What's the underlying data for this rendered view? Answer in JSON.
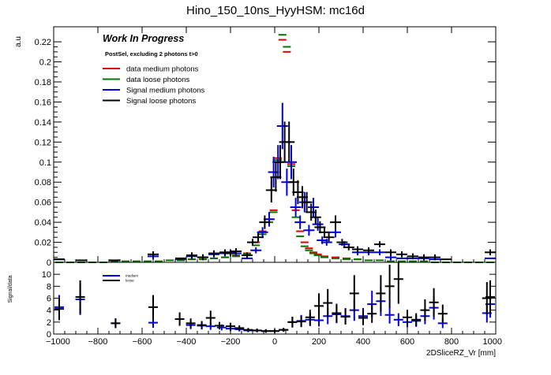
{
  "chart_data": [
    {
      "type": "scatter",
      "title": "Hino_150_10ns_HyyHSM: mc16d",
      "ylabel": "a.u",
      "xlim": [
        -1000,
        1000
      ],
      "ylim": [
        0,
        0.235
      ],
      "yticks": [
        0,
        0.02,
        0.04,
        0.06,
        0.08,
        0.1,
        0.12,
        0.14,
        0.16,
        0.18,
        0.2,
        0.22
      ],
      "ytick_labels": [
        "0",
        "0.02",
        "0.04",
        "0.06",
        "0.08",
        "0.1",
        "0.12",
        "0.14",
        "0.16",
        "0.18",
        "0.2",
        "0.22"
      ],
      "annotations": {
        "work_in_progress": "Work In Progress",
        "selection": "PostSel, excluding 2 photons t>0"
      },
      "legend_position": "top-left",
      "series": [
        {
          "name": "data medium photons",
          "color": "#dd0000",
          "points": [
            [
              -975,
              0
            ],
            [
              -925,
              0
            ],
            [
              -875,
              0
            ],
            [
              -825,
              0
            ],
            [
              -775,
              0
            ],
            [
              -725,
              0.001
            ],
            [
              -675,
              0.001
            ],
            [
              -625,
              0.001
            ],
            [
              -575,
              0.001
            ],
            [
              -525,
              0.001
            ],
            [
              -475,
              0.002
            ],
            [
              -425,
              0.002
            ],
            [
              -375,
              0.003
            ],
            [
              -325,
              0.003
            ],
            [
              -275,
              0.004
            ],
            [
              -225,
              0.005
            ],
            [
              -175,
              0.007
            ],
            [
              -125,
              0.009
            ],
            [
              -85,
              0.02
            ],
            [
              -55,
              0.031
            ],
            [
              -25,
              0.043
            ],
            [
              -5,
              0.052
            ],
            [
              15,
              0.104
            ],
            [
              35,
              0.222
            ],
            [
              55,
              0.21
            ],
            [
              75,
              0.098
            ],
            [
              95,
              0.052
            ],
            [
              115,
              0.031
            ],
            [
              135,
              0.02
            ],
            [
              155,
              0.014
            ],
            [
              175,
              0.01
            ],
            [
              195,
              0.008
            ],
            [
              225,
              0.006
            ],
            [
              275,
              0.005
            ],
            [
              325,
              0.004
            ],
            [
              375,
              0.003
            ],
            [
              425,
              0.002
            ],
            [
              475,
              0.002
            ],
            [
              525,
              0.001
            ],
            [
              575,
              0.001
            ],
            [
              625,
              0.001
            ],
            [
              675,
              0.001
            ],
            [
              725,
              0
            ],
            [
              775,
              0
            ],
            [
              825,
              0
            ],
            [
              875,
              0
            ],
            [
              925,
              0
            ],
            [
              975,
              0
            ]
          ]
        },
        {
          "name": "data loose photons",
          "color": "#007700",
          "points": [
            [
              -975,
              0
            ],
            [
              -925,
              0
            ],
            [
              -875,
              0
            ],
            [
              -825,
              0
            ],
            [
              -775,
              0
            ],
            [
              -725,
              0.001
            ],
            [
              -675,
              0.001
            ],
            [
              -625,
              0.001
            ],
            [
              -575,
              0.001
            ],
            [
              -525,
              0.001
            ],
            [
              -475,
              0.002
            ],
            [
              -425,
              0.002
            ],
            [
              -375,
              0.003
            ],
            [
              -325,
              0.003
            ],
            [
              -275,
              0.004
            ],
            [
              -225,
              0.005
            ],
            [
              -175,
              0.006
            ],
            [
              -125,
              0.008
            ],
            [
              -85,
              0.017
            ],
            [
              -55,
              0.028
            ],
            [
              -25,
              0.04
            ],
            [
              -5,
              0.05
            ],
            [
              15,
              0.102
            ],
            [
              35,
              0.227
            ],
            [
              55,
              0.215
            ],
            [
              75,
              0.096
            ],
            [
              95,
              0.045
            ],
            [
              115,
              0.026
            ],
            [
              135,
              0.016
            ],
            [
              155,
              0.012
            ],
            [
              175,
              0.009
            ],
            [
              195,
              0.007
            ],
            [
              225,
              0.005
            ],
            [
              275,
              0.004
            ],
            [
              325,
              0.003
            ],
            [
              375,
              0.003
            ],
            [
              425,
              0.002
            ],
            [
              475,
              0.002
            ],
            [
              525,
              0.001
            ],
            [
              575,
              0.001
            ],
            [
              625,
              0.001
            ],
            [
              675,
              0.001
            ],
            [
              725,
              0
            ],
            [
              775,
              0
            ],
            [
              825,
              0
            ],
            [
              875,
              0
            ],
            [
              925,
              0
            ],
            [
              975,
              0
            ]
          ]
        },
        {
          "name": "Signal medium photons",
          "color": "#0000dd",
          "points": [
            [
              -975,
              0.003
            ],
            [
              -725,
              0.002
            ],
            [
              -550,
              0.006
            ],
            [
              -425,
              0.003
            ],
            [
              -375,
              0.006
            ],
            [
              -325,
              0.005
            ],
            [
              -275,
              0.008
            ],
            [
              -225,
              0.009
            ],
            [
              -200,
              0.01
            ],
            [
              -175,
              0.009
            ],
            [
              -125,
              0.004
            ],
            [
              -85,
              0.012
            ],
            [
              -55,
              0.03
            ],
            [
              -25,
              0.043
            ],
            [
              -5,
              0.09
            ],
            [
              15,
              0.1
            ],
            [
              35,
              0.136
            ],
            [
              55,
              0.08
            ],
            [
              75,
              0.1
            ],
            [
              95,
              0.055
            ],
            [
              115,
              0.04
            ],
            [
              135,
              0.06
            ],
            [
              155,
              0.032
            ],
            [
              175,
              0.055
            ],
            [
              195,
              0.038
            ],
            [
              215,
              0.022
            ],
            [
              235,
              0.02
            ],
            [
              275,
              0.03
            ],
            [
              315,
              0.018
            ],
            [
              375,
              0.01
            ],
            [
              425,
              0.01
            ],
            [
              475,
              0.01
            ],
            [
              525,
              0.005
            ],
            [
              575,
              0.004
            ],
            [
              625,
              0.004
            ],
            [
              675,
              0.004
            ],
            [
              725,
              0.003
            ],
            [
              975,
              0.004
            ]
          ]
        },
        {
          "name": "Signal loose photons",
          "color": "#000000",
          "points": [
            [
              -975,
              0.003
            ],
            [
              -875,
              0.002
            ],
            [
              -725,
              0.002
            ],
            [
              -550,
              0.008
            ],
            [
              -425,
              0.004
            ],
            [
              -375,
              0.007
            ],
            [
              -325,
              0.005
            ],
            [
              -275,
              0.009
            ],
            [
              -225,
              0.01
            ],
            [
              -200,
              0.009
            ],
            [
              -175,
              0.011
            ],
            [
              -125,
              0.007
            ],
            [
              -100,
              0.02
            ],
            [
              -75,
              0.025
            ],
            [
              -45,
              0.04
            ],
            [
              -15,
              0.072
            ],
            [
              5,
              0.085
            ],
            [
              25,
              0.1
            ],
            [
              45,
              0.12
            ],
            [
              65,
              0.12
            ],
            [
              85,
              0.08
            ],
            [
              105,
              0.07
            ],
            [
              125,
              0.065
            ],
            [
              145,
              0.06
            ],
            [
              165,
              0.05
            ],
            [
              185,
              0.045
            ],
            [
              205,
              0.035
            ],
            [
              225,
              0.03
            ],
            [
              245,
              0.025
            ],
            [
              275,
              0.04
            ],
            [
              305,
              0.02
            ],
            [
              335,
              0.015
            ],
            [
              375,
              0.013
            ],
            [
              425,
              0.012
            ],
            [
              475,
              0.018
            ],
            [
              525,
              0.01
            ],
            [
              575,
              0.008
            ],
            [
              625,
              0.006
            ],
            [
              675,
              0.005
            ],
            [
              725,
              0.005
            ],
            [
              775,
              0.003
            ],
            [
              975,
              0.01
            ]
          ]
        }
      ]
    },
    {
      "type": "scatter",
      "ylabel": "Signal/data",
      "xlabel": "2DSliceRZ_Vr [mm]",
      "xlim": [
        -1000,
        1000
      ],
      "ylim": [
        0,
        12
      ],
      "xticks": [
        -1000,
        -800,
        -600,
        -400,
        -200,
        0,
        200,
        400,
        600,
        800,
        1000
      ],
      "xtick_labels": [
        "−1000",
        "−800",
        "−600",
        "−400",
        "−200",
        "0",
        "200",
        "400",
        "600",
        "800",
        "1000"
      ],
      "yticks": [
        0,
        2,
        4,
        6,
        8,
        10
      ],
      "ytick_labels": [
        "0",
        "2",
        "4",
        "6",
        "8",
        "10"
      ],
      "legend_position": "top-left",
      "series": [
        {
          "name": "medium",
          "color": "#0000dd",
          "points": [
            [
              -975,
              4.5
            ],
            [
              -880,
              5.8
            ],
            [
              -720,
              1.8
            ],
            [
              -550,
              1.9
            ],
            [
              -380,
              1.5
            ],
            [
              -330,
              1.4
            ],
            [
              -290,
              1.3
            ],
            [
              -240,
              1.1
            ],
            [
              -200,
              0.9
            ],
            [
              -160,
              0.8
            ],
            [
              -120,
              0.6
            ],
            [
              -80,
              0.6
            ],
            [
              -40,
              0.5
            ],
            [
              0,
              0.5
            ],
            [
              40,
              0.7
            ],
            [
              80,
              2.0
            ],
            [
              120,
              2.2
            ],
            [
              160,
              2.4
            ],
            [
              200,
              2.3
            ],
            [
              240,
              3.0
            ],
            [
              280,
              3.3
            ],
            [
              320,
              3.0
            ],
            [
              360,
              4.0
            ],
            [
              400,
              3.0
            ],
            [
              440,
              5.0
            ],
            [
              480,
              5.5
            ],
            [
              520,
              3.2
            ],
            [
              560,
              2.4
            ],
            [
              600,
              2.0
            ],
            [
              640,
              2.2
            ],
            [
              680,
              3.0
            ],
            [
              720,
              4.4
            ],
            [
              760,
              1.8
            ],
            [
              960,
              3.5
            ],
            [
              975,
              5.0
            ]
          ]
        },
        {
          "name": "loose",
          "color": "#000000",
          "points": [
            [
              -975,
              4.2
            ],
            [
              -880,
              6.2
            ],
            [
              -720,
              1.8
            ],
            [
              -550,
              4.5
            ],
            [
              -430,
              2.5
            ],
            [
              -380,
              1.8
            ],
            [
              -330,
              1.5
            ],
            [
              -290,
              2.7
            ],
            [
              -250,
              1.4
            ],
            [
              -200,
              1.3
            ],
            [
              -160,
              1.0
            ],
            [
              -120,
              0.7
            ],
            [
              -80,
              0.6
            ],
            [
              -40,
              0.5
            ],
            [
              0,
              0.5
            ],
            [
              40,
              0.7
            ],
            [
              80,
              2.0
            ],
            [
              120,
              2.1
            ],
            [
              160,
              2.8
            ],
            [
              200,
              4.7
            ],
            [
              240,
              5.2
            ],
            [
              280,
              3.5
            ],
            [
              320,
              2.9
            ],
            [
              360,
              6.8
            ],
            [
              400,
              2.7
            ],
            [
              440,
              3.4
            ],
            [
              480,
              6.8
            ],
            [
              520,
              8.0
            ],
            [
              560,
              9.2
            ],
            [
              600,
              2.8
            ],
            [
              640,
              2.4
            ],
            [
              680,
              4.0
            ],
            [
              720,
              5.3
            ],
            [
              760,
              3.4
            ],
            [
              960,
              6.0
            ],
            [
              975,
              6.2
            ]
          ]
        }
      ]
    }
  ]
}
